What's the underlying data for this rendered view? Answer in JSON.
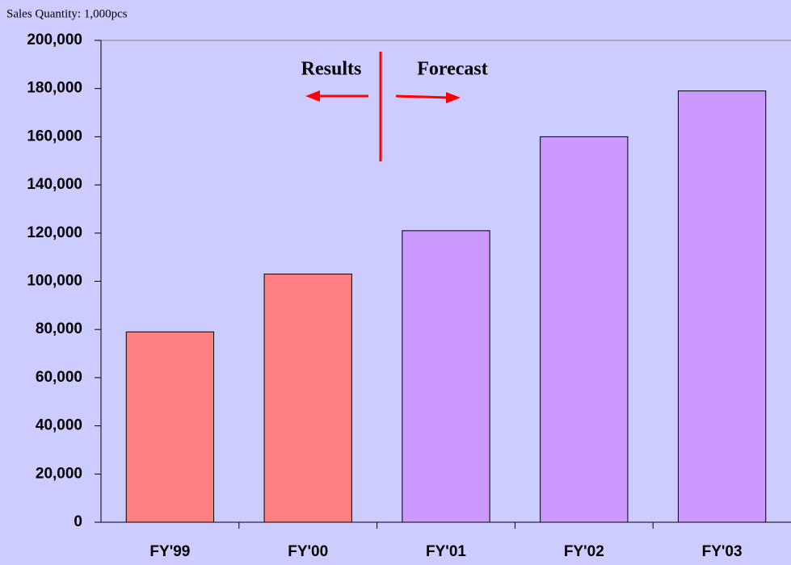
{
  "chart_data": {
    "type": "bar",
    "subtitle": "Sales Quantity: 1,000pcs",
    "categories": [
      "FY'99",
      "FY'00",
      "FY'01",
      "FY'02",
      "FY'03"
    ],
    "values": [
      79000,
      103000,
      121000,
      160000,
      179000
    ],
    "colors": [
      "#ff8080",
      "#ff8080",
      "#cc99ff",
      "#cc99ff",
      "#cc99ff"
    ],
    "ylim": [
      0,
      200000
    ],
    "yticks": [
      0,
      {
        "value": 20000,
        "label": "20,000"
      },
      {
        "value": 40000,
        "label": "40,000"
      },
      {
        "value": 60000,
        "label": "60,000"
      },
      {
        "value": 80000,
        "label": "80,000"
      },
      {
        "value": 100000,
        "label": "100,000"
      },
      {
        "value": 120000,
        "label": "120,000"
      },
      {
        "value": 140000,
        "label": "140,000"
      },
      {
        "value": 160000,
        "label": "160,000"
      },
      {
        "value": 180000,
        "label": "180,000"
      },
      {
        "value": 200000,
        "label": "200,000"
      }
    ],
    "annotations": [
      "Results",
      "Forecast"
    ]
  }
}
